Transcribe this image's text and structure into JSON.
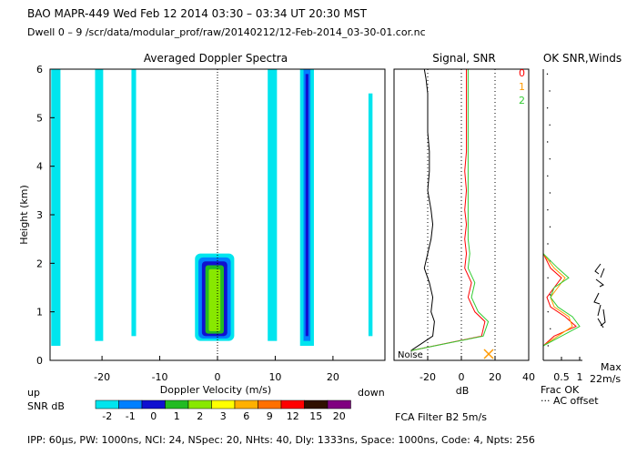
{
  "header": {
    "line1": "BAO  MAPR-449  Wed Feb 12 2014 03:30 – 03:34 UT 20:30 MST",
    "line2": "Dwell  0 –  9   /scr/data/modular_prof/raw/20140212/12-Feb-2014_03-30-01.cor.nc"
  },
  "footer": {
    "params": "IPP: 60µs,  PW: 1000ns,  NCI: 24,  NSpec: 20, NHts: 40,  Dly: 1333ns,  Space: 1000ns,  Code: 4,  Npts: 256",
    "fca_filter": "FCA Filter B2   5m/s"
  },
  "panels": {
    "doppler_title": "Averaged Doppler Spectra",
    "signal_title": "Signal, SNR",
    "ok_title": "OK SNR,Winds",
    "up_label": "up",
    "down_label": "down",
    "noise_label": "Noise",
    "max_label": "Max",
    "max_value": "22m/s",
    "frac_ok_label": "Frac OK",
    "ac_offset_label": "··· AC offset",
    "ok_legend": [
      "0",
      "1",
      "2"
    ],
    "ok_legend_colors": [
      "#ff0000",
      "#ff9a00",
      "#33cc33"
    ]
  },
  "snr_scale": {
    "label": "SNR dB",
    "ticks": [
      "-2",
      "-1",
      "0",
      "1",
      "2",
      "3",
      "6",
      "9",
      "12",
      "15",
      "20"
    ],
    "colors": [
      "#00e5ee",
      "#0080ff",
      "#1010d0",
      "#22bb22",
      "#88e800",
      "#ffff00",
      "#ffb000",
      "#ff7000",
      "#ff0000",
      "#301000",
      "#800080"
    ]
  },
  "chart_data": [
    {
      "type": "heatmap",
      "title": "Averaged Doppler Spectra",
      "xlabel": "Doppler Velocity (m/s)",
      "ylabel": "Height (km)",
      "xlim": [
        -29,
        29
      ],
      "ylim": [
        0,
        6
      ],
      "x_ticks": [
        -20,
        -10,
        0,
        10,
        20
      ],
      "y_ticks": [
        0,
        1,
        2,
        3,
        4,
        5,
        6
      ],
      "bands": [
        {
          "center": -28,
          "width": 1.6,
          "height_range": [
            0.3,
            6.0
          ],
          "snr_level": -2
        },
        {
          "center": -20.5,
          "width": 1.4,
          "height_range": [
            0.4,
            6.0
          ],
          "snr_level": -2
        },
        {
          "center": -14.5,
          "width": 0.8,
          "height_range": [
            0.5,
            6.0
          ],
          "snr_level": -2
        },
        {
          "center": 9.5,
          "width": 1.6,
          "height_range": [
            0.4,
            6.0
          ],
          "snr_level": -2
        },
        {
          "center": 15.5,
          "width": 2.4,
          "height_range": [
            0.3,
            6.0
          ],
          "snr_level": -2
        },
        {
          "center": 15.5,
          "width": 1.2,
          "height_range": [
            0.4,
            6.0
          ],
          "snr_level": -1
        },
        {
          "center": 15.5,
          "width": 0.5,
          "height_range": [
            0.5,
            5.9
          ],
          "snr_level": 0
        },
        {
          "center": 26.5,
          "width": 0.7,
          "height_range": [
            0.5,
            5.5
          ],
          "snr_level": -2
        }
      ],
      "ground_blob": {
        "center_velocity": -0.5,
        "height_range": [
          0.4,
          2.2
        ],
        "snr_levels": [
          -2,
          -1,
          0,
          1,
          2
        ]
      }
    },
    {
      "type": "line",
      "title": "Signal, SNR",
      "xlabel": "dB",
      "xlim": [
        -40,
        40
      ],
      "ylim": [
        0,
        6
      ],
      "x_ticks": [
        -20,
        0,
        20,
        40
      ],
      "series": [
        {
          "name": "Noise",
          "color": "#000000",
          "x": [
            -30,
            -17,
            -16,
            -18,
            -17,
            -19,
            -22,
            -20,
            -18,
            -17,
            -18,
            -20,
            -19,
            -19,
            -20,
            -20,
            -20,
            -21,
            -22
          ],
          "y": [
            0.2,
            0.5,
            0.8,
            1.0,
            1.3,
            1.6,
            1.9,
            2.2,
            2.5,
            2.8,
            3.1,
            3.5,
            3.9,
            4.3,
            4.7,
            5.1,
            5.5,
            5.8,
            6.0
          ]
        },
        {
          "name": "SNR beam 0",
          "color": "#ff0000",
          "x": [
            -30,
            12,
            14,
            8,
            4,
            6,
            2,
            3,
            2,
            3,
            2,
            3,
            2,
            3,
            3,
            3,
            3,
            3,
            3
          ],
          "y": [
            0.2,
            0.5,
            0.8,
            1.0,
            1.3,
            1.6,
            1.9,
            2.2,
            2.5,
            2.8,
            3.1,
            3.5,
            3.9,
            4.3,
            4.7,
            5.1,
            5.5,
            5.8,
            6.0
          ]
        },
        {
          "name": "SNR beam 2",
          "color": "#33cc33",
          "x": [
            -30,
            13,
            16,
            10,
            6,
            8,
            4,
            5,
            4,
            4,
            4,
            4,
            4,
            4,
            4,
            4,
            4,
            4,
            4
          ],
          "y": [
            0.2,
            0.5,
            0.8,
            1.0,
            1.3,
            1.6,
            1.9,
            2.2,
            2.5,
            2.8,
            3.1,
            3.5,
            3.9,
            4.3,
            4.7,
            5.1,
            5.5,
            5.8,
            6.0
          ]
        }
      ]
    },
    {
      "type": "line",
      "title": "OK SNR,Winds",
      "xlabel": "Frac OK",
      "xlim": [
        0,
        1
      ],
      "ylim": [
        0,
        6
      ],
      "x_ticks": [
        0.5,
        1
      ],
      "x_tick_labels": [
        "0.5",
        "1"
      ],
      "series": [
        {
          "name": "0",
          "color": "#ff0000",
          "x": [
            0.0,
            0.3,
            0.9,
            0.6,
            0.2,
            0.1,
            0.3,
            0.5,
            0.2,
            0.0
          ],
          "y": [
            0.3,
            0.5,
            0.7,
            0.9,
            1.1,
            1.3,
            1.5,
            1.7,
            1.9,
            2.2
          ]
        },
        {
          "name": "1",
          "color": "#ff9a00",
          "x": [
            0.0,
            0.4,
            0.8,
            0.7,
            0.3,
            0.2,
            0.4,
            0.6,
            0.3,
            0.0
          ],
          "y": [
            0.3,
            0.5,
            0.7,
            0.9,
            1.1,
            1.3,
            1.5,
            1.7,
            1.9,
            2.2
          ]
        },
        {
          "name": "2",
          "color": "#33cc33",
          "x": [
            0.0,
            0.5,
            1.0,
            0.8,
            0.4,
            0.2,
            0.3,
            0.7,
            0.4,
            0.0
          ],
          "y": [
            0.3,
            0.5,
            0.7,
            0.9,
            1.1,
            1.3,
            1.5,
            1.7,
            1.9,
            2.2
          ]
        }
      ]
    }
  ]
}
